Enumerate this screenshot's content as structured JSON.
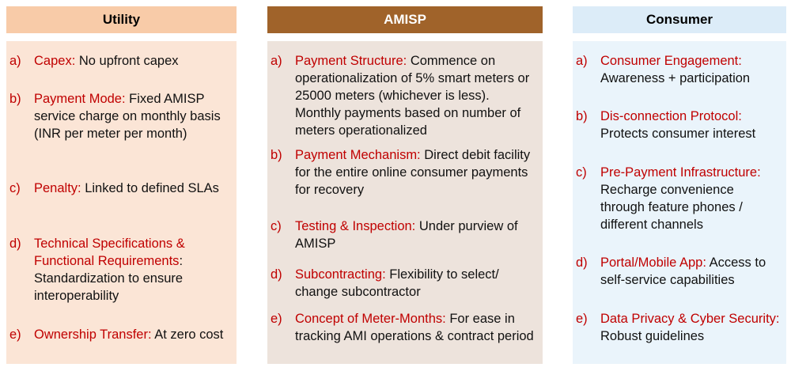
{
  "columns": {
    "utility": {
      "title": "Utility",
      "items": [
        {
          "mark": "a)",
          "key": "Capex:",
          "text": " No upfront capex"
        },
        {
          "mark": "b)",
          "key": "Payment Mode:",
          "text": " Fixed AMISP service charge on monthly basis (INR per meter per month)"
        },
        {
          "mark": "c)",
          "key": "Penalty:",
          "text": " Linked to defined SLAs"
        },
        {
          "mark": "d)",
          "key": "Technical Specifications & Functional Requirements",
          "text": ": Standardization to ensure interoperability"
        },
        {
          "mark": "e)",
          "key": "Ownership Transfer:",
          "text": " At zero cost"
        }
      ]
    },
    "amisp": {
      "title": "AMISP",
      "items": [
        {
          "mark": "a)",
          "key": "Payment Structure:",
          "text": " Commence on operationalization of 5% smart meters or 25000 meters (whichever is less). Monthly payments based on number of meters operationalized"
        },
        {
          "mark": "b)",
          "key": "Payment Mechanism:",
          "text": " Direct debit facility for the entire online consumer payments for recovery"
        },
        {
          "mark": "c)",
          "key": "Testing & Inspection:",
          "text": " Under purview of AMISP"
        },
        {
          "mark": "d)",
          "key": "Subcontracting:",
          "text": " Flexibility to select/ change subcontractor"
        },
        {
          "mark": "e)",
          "key": "Concept of Meter-Months:",
          "text": " For ease in tracking AMI operations & contract period"
        }
      ]
    },
    "consumer": {
      "title": "Consumer",
      "items": [
        {
          "mark": "a)",
          "key": "Consumer Engagement:",
          "text": " Awareness + participation"
        },
        {
          "mark": "b)",
          "key": "Dis-connection Protocol:",
          "text": " Protects consumer interest"
        },
        {
          "mark": "c)",
          "key": "Pre-Payment Infrastructure:",
          "text": " Recharge convenience through feature phones / different channels"
        },
        {
          "mark": "d)",
          "key": "Portal/Mobile App:",
          "text": " Access to self-service capabilities"
        },
        {
          "mark": "e)",
          "key": "Data Privacy & Cyber Security:",
          "text": " Robust guidelines"
        }
      ]
    }
  }
}
